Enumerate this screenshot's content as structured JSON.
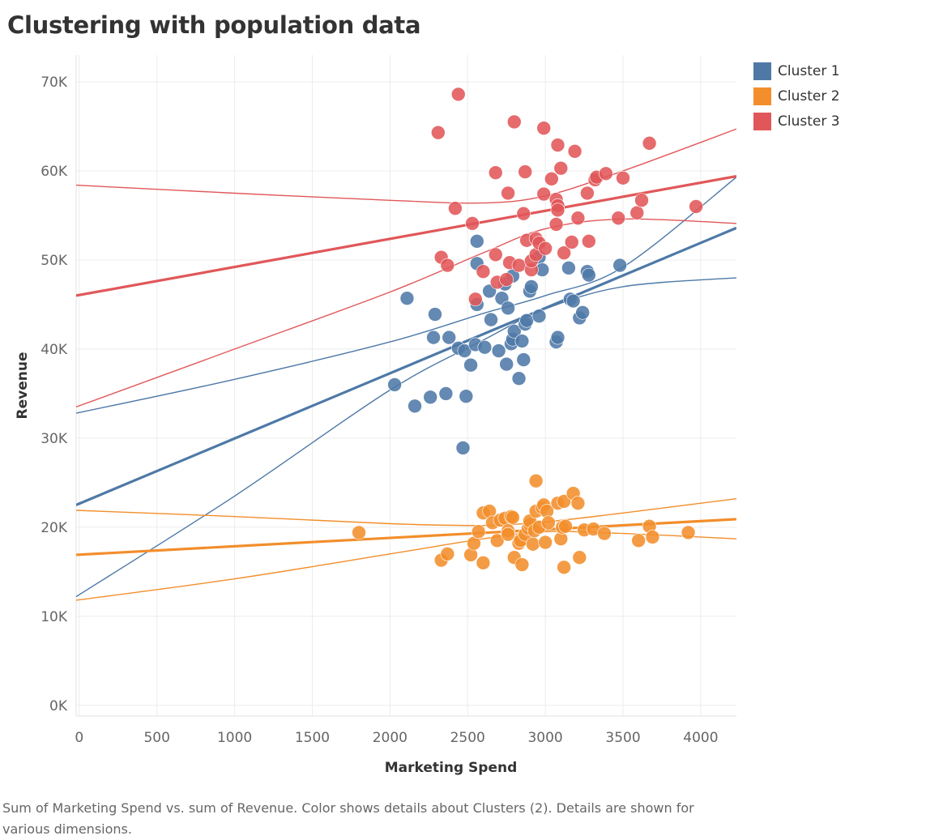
{
  "title": "Clustering with population data",
  "caption": "Sum of Marketing Spend vs. sum of Revenue.  Color shows details about Clusters (2).  Details are shown for various dimensions.",
  "chart_data": {
    "type": "scatter",
    "xlabel": "Marketing Spend",
    "ylabel": "Revenue",
    "xlim": [
      -20,
      4230
    ],
    "ylim": [
      -1200,
      73000
    ],
    "x_ticks": [
      0,
      500,
      1000,
      1500,
      2000,
      2500,
      3000,
      3500,
      4000
    ],
    "x_tick_labels": [
      "0",
      "500",
      "1000",
      "1500",
      "2000",
      "2500",
      "3000",
      "3500",
      "4000"
    ],
    "y_ticks": [
      0,
      10000,
      20000,
      30000,
      40000,
      50000,
      60000,
      70000
    ],
    "y_tick_labels": [
      "0K",
      "10K",
      "20K",
      "30K",
      "40K",
      "50K",
      "60K",
      "70K"
    ],
    "grid": true,
    "legend_position": "top-right",
    "series": [
      {
        "name": "Cluster 1",
        "color": "#4e79a7",
        "points": [
          [
            2030,
            36000
          ],
          [
            2110,
            45700
          ],
          [
            2160,
            33600
          ],
          [
            2260,
            34600
          ],
          [
            2280,
            41300
          ],
          [
            2290,
            43900
          ],
          [
            2360,
            35000
          ],
          [
            2380,
            41300
          ],
          [
            2440,
            40100
          ],
          [
            2470,
            28900
          ],
          [
            2480,
            39800
          ],
          [
            2490,
            34700
          ],
          [
            2520,
            38200
          ],
          [
            2550,
            40500
          ],
          [
            2560,
            52100
          ],
          [
            2560,
            49600
          ],
          [
            2560,
            45000
          ],
          [
            2610,
            40200
          ],
          [
            2640,
            46500
          ],
          [
            2650,
            43300
          ],
          [
            2700,
            39800
          ],
          [
            2720,
            45700
          ],
          [
            2740,
            47300
          ],
          [
            2750,
            38300
          ],
          [
            2760,
            44600
          ],
          [
            2780,
            40600
          ],
          [
            2790,
            41100
          ],
          [
            2790,
            48200
          ],
          [
            2800,
            42000
          ],
          [
            2830,
            36700
          ],
          [
            2850,
            40900
          ],
          [
            2860,
            38800
          ],
          [
            2870,
            42800
          ],
          [
            2880,
            43200
          ],
          [
            2900,
            46500
          ],
          [
            2910,
            47000
          ],
          [
            2960,
            43700
          ],
          [
            2960,
            50300
          ],
          [
            2980,
            48900
          ],
          [
            3070,
            40800
          ],
          [
            3080,
            41300
          ],
          [
            3150,
            49100
          ],
          [
            3160,
            45600
          ],
          [
            3180,
            45400
          ],
          [
            3220,
            43500
          ],
          [
            3240,
            44100
          ],
          [
            3270,
            48700
          ],
          [
            3280,
            48300
          ],
          [
            3480,
            49400
          ]
        ],
        "trend": {
          "fit": [
            [
              -20,
              22500
            ],
            [
              4230,
              53600
            ]
          ],
          "upper": [
            [
              -20,
              32800
            ],
            [
              1000,
              36600
            ],
            [
              2000,
              40800
            ],
            [
              2600,
              44000
            ],
            [
              3000,
              46000
            ],
            [
              3500,
              49200
            ],
            [
              4230,
              59300
            ]
          ],
          "lower": [
            [
              -20,
              12200
            ],
            [
              1000,
              23500
            ],
            [
              2000,
              35400
            ],
            [
              2600,
              41000
            ],
            [
              3000,
              44500
            ],
            [
              3500,
              47000
            ],
            [
              4230,
              48000
            ]
          ]
        }
      },
      {
        "name": "Cluster 2",
        "color": "#f28e2b",
        "points": [
          [
            1800,
            19400
          ],
          [
            2330,
            16300
          ],
          [
            2370,
            17000
          ],
          [
            2520,
            16900
          ],
          [
            2540,
            18200
          ],
          [
            2570,
            19500
          ],
          [
            2600,
            16000
          ],
          [
            2600,
            21600
          ],
          [
            2640,
            21800
          ],
          [
            2660,
            20500
          ],
          [
            2690,
            18500
          ],
          [
            2710,
            20800
          ],
          [
            2740,
            21000
          ],
          [
            2760,
            19600
          ],
          [
            2760,
            19200
          ],
          [
            2780,
            21200
          ],
          [
            2790,
            21100
          ],
          [
            2800,
            16600
          ],
          [
            2830,
            18200
          ],
          [
            2840,
            18500
          ],
          [
            2850,
            15800
          ],
          [
            2870,
            19200
          ],
          [
            2890,
            19900
          ],
          [
            2900,
            20300
          ],
          [
            2900,
            20700
          ],
          [
            2920,
            18100
          ],
          [
            2930,
            19600
          ],
          [
            2940,
            25200
          ],
          [
            2940,
            21800
          ],
          [
            2960,
            20000
          ],
          [
            2980,
            22200
          ],
          [
            2990,
            22500
          ],
          [
            3000,
            18300
          ],
          [
            3010,
            21800
          ],
          [
            3020,
            20500
          ],
          [
            3080,
            22700
          ],
          [
            3100,
            18700
          ],
          [
            3110,
            20000
          ],
          [
            3120,
            15500
          ],
          [
            3120,
            22900
          ],
          [
            3130,
            20100
          ],
          [
            3180,
            23800
          ],
          [
            3210,
            22700
          ],
          [
            3220,
            16600
          ],
          [
            3250,
            19700
          ],
          [
            3310,
            19800
          ],
          [
            3380,
            19300
          ],
          [
            3600,
            18500
          ],
          [
            3670,
            20100
          ],
          [
            3690,
            18900
          ],
          [
            3920,
            19400
          ]
        ],
        "trend": {
          "fit": [
            [
              -20,
              16900
            ],
            [
              4230,
              20900
            ]
          ],
          "upper": [
            [
              -20,
              21900
            ],
            [
              1000,
              21200
            ],
            [
              2000,
              20400
            ],
            [
              2600,
              20200
            ],
            [
              3000,
              20600
            ],
            [
              3500,
              21600
            ],
            [
              4230,
              23200
            ]
          ],
          "lower": [
            [
              -20,
              11800
            ],
            [
              1000,
              14200
            ],
            [
              2000,
              17000
            ],
            [
              2600,
              18700
            ],
            [
              3000,
              19500
            ],
            [
              3500,
              19300
            ],
            [
              4230,
              18700
            ]
          ]
        }
      },
      {
        "name": "Cluster 3",
        "color": "#e15759",
        "points": [
          [
            2310,
            64300
          ],
          [
            2330,
            50300
          ],
          [
            2370,
            49400
          ],
          [
            2420,
            55800
          ],
          [
            2440,
            68600
          ],
          [
            2530,
            54100
          ],
          [
            2550,
            45600
          ],
          [
            2600,
            48700
          ],
          [
            2680,
            59800
          ],
          [
            2680,
            50600
          ],
          [
            2690,
            47500
          ],
          [
            2750,
            47800
          ],
          [
            2760,
            57500
          ],
          [
            2770,
            49700
          ],
          [
            2800,
            65500
          ],
          [
            2830,
            49400
          ],
          [
            2860,
            55200
          ],
          [
            2870,
            59900
          ],
          [
            2880,
            52200
          ],
          [
            2910,
            48900
          ],
          [
            2910,
            49900
          ],
          [
            2940,
            52400
          ],
          [
            2940,
            50600
          ],
          [
            2960,
            51900
          ],
          [
            2990,
            64800
          ],
          [
            2990,
            57400
          ],
          [
            3000,
            51300
          ],
          [
            3040,
            59100
          ],
          [
            3070,
            54000
          ],
          [
            3070,
            56800
          ],
          [
            3080,
            56100
          ],
          [
            3080,
            55600
          ],
          [
            3080,
            62900
          ],
          [
            3100,
            60300
          ],
          [
            3120,
            50800
          ],
          [
            3170,
            52000
          ],
          [
            3190,
            62200
          ],
          [
            3210,
            54700
          ],
          [
            3270,
            57500
          ],
          [
            3280,
            52100
          ],
          [
            3320,
            59000
          ],
          [
            3330,
            59300
          ],
          [
            3390,
            59700
          ],
          [
            3470,
            54700
          ],
          [
            3500,
            59200
          ],
          [
            3590,
            55300
          ],
          [
            3620,
            56700
          ],
          [
            3670,
            63100
          ],
          [
            3970,
            56000
          ]
        ],
        "trend": {
          "fit": [
            [
              -20,
              46000
            ],
            [
              4230,
              59400
            ]
          ],
          "upper": [
            [
              -20,
              58400
            ],
            [
              1000,
              57500
            ],
            [
              2000,
              56700
            ],
            [
              2600,
              56400
            ],
            [
              3000,
              57200
            ],
            [
              3500,
              60000
            ],
            [
              4230,
              64700
            ]
          ],
          "lower": [
            [
              -20,
              33500
            ],
            [
              1000,
              40000
            ],
            [
              2000,
              46400
            ],
            [
              2600,
              50800
            ],
            [
              3000,
              53500
            ],
            [
              3500,
              54600
            ],
            [
              4230,
              54100
            ]
          ]
        }
      }
    ]
  }
}
